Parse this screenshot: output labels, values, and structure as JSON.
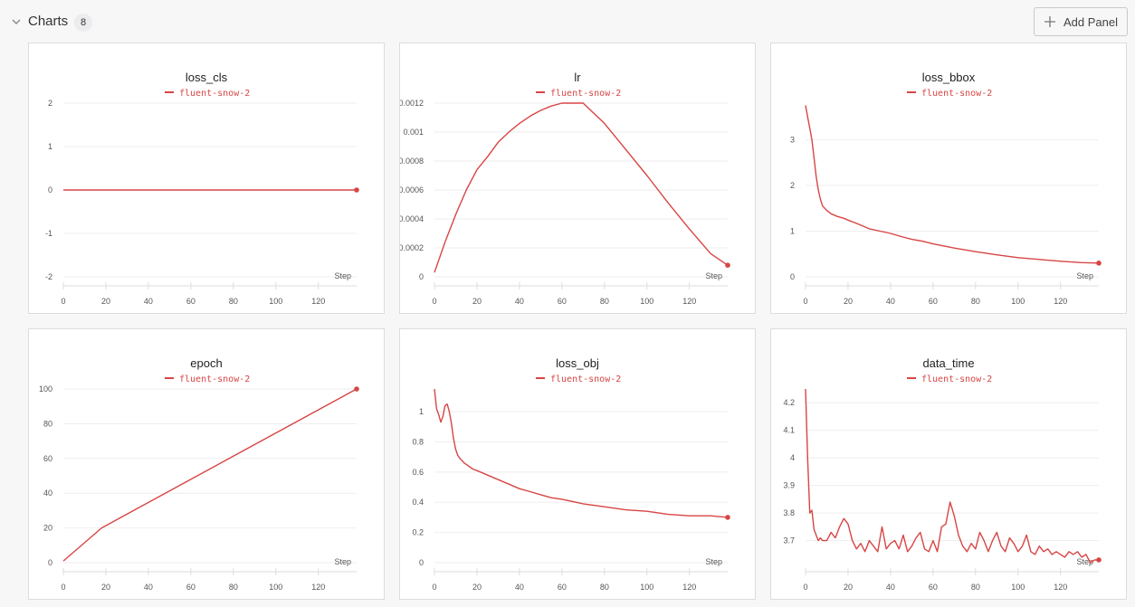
{
  "section": {
    "title": "Charts",
    "count": "8",
    "add_panel_label": "Add Panel"
  },
  "colors": {
    "series": "#d84545",
    "grid": "#eeeeee",
    "tick": "#555555"
  },
  "icons": {
    "collapse": "chevron-down-icon",
    "add": "plus-icon"
  },
  "chart_data": [
    {
      "type": "line",
      "title": "loss_cls",
      "legend": [
        "fluent-snow-2"
      ],
      "xlabel": "Step",
      "ylabel": "",
      "xlim": [
        0,
        138
      ],
      "ylim": [
        -2,
        2
      ],
      "xticks": [
        "0",
        "20",
        "40",
        "60",
        "80",
        "100",
        "120"
      ],
      "yticks": [
        "-2",
        "-1",
        "0",
        "1",
        "2"
      ],
      "series": [
        {
          "name": "fluent-snow-2",
          "x": [
            0,
            138
          ],
          "y": [
            0,
            0
          ]
        }
      ]
    },
    {
      "type": "line",
      "title": "lr",
      "legend": [
        "fluent-snow-2"
      ],
      "xlabel": "Step",
      "ylabel": "",
      "xlim": [
        0,
        138
      ],
      "ylim": [
        0,
        0.0012
      ],
      "xticks": [
        "0",
        "20",
        "40",
        "60",
        "80",
        "100",
        "120"
      ],
      "yticks": [
        "0",
        "0.0002",
        "0.0004",
        "0.0006",
        "0.0008",
        "0.001",
        "0.0012"
      ],
      "series": [
        {
          "name": "fluent-snow-2",
          "x": [
            0,
            5,
            10,
            15,
            20,
            25,
            30,
            35,
            40,
            45,
            50,
            55,
            60,
            65,
            70,
            80,
            90,
            100,
            110,
            120,
            130,
            138
          ],
          "y": [
            3e-05,
            0.00024,
            0.00043,
            0.0006,
            0.00074,
            0.00083,
            0.00093,
            0.001,
            0.00106,
            0.00111,
            0.00115,
            0.00118,
            0.0012,
            0.0012,
            0.0012,
            0.00106,
            0.00088,
            0.0007,
            0.00051,
            0.00033,
            0.00016,
            8e-05
          ]
        }
      ]
    },
    {
      "type": "line",
      "title": "loss_bbox",
      "legend": [
        "fluent-snow-2"
      ],
      "xlabel": "Step",
      "ylabel": "",
      "xlim": [
        0,
        138
      ],
      "ylim": [
        0,
        3.8
      ],
      "xticks": [
        "0",
        "20",
        "40",
        "60",
        "80",
        "100",
        "120"
      ],
      "yticks": [
        "0",
        "1",
        "2",
        "3"
      ],
      "series": [
        {
          "name": "fluent-snow-2",
          "x": [
            0,
            1,
            2,
            3,
            4,
            5,
            6,
            7,
            8,
            10,
            12,
            15,
            18,
            20,
            25,
            30,
            35,
            40,
            45,
            50,
            55,
            60,
            70,
            80,
            90,
            100,
            110,
            120,
            130,
            138
          ],
          "y": [
            3.75,
            3.5,
            3.25,
            3.0,
            2.6,
            2.2,
            1.9,
            1.7,
            1.55,
            1.45,
            1.38,
            1.32,
            1.28,
            1.24,
            1.15,
            1.05,
            1.0,
            0.95,
            0.88,
            0.82,
            0.78,
            0.72,
            0.63,
            0.55,
            0.48,
            0.42,
            0.38,
            0.34,
            0.31,
            0.3
          ]
        }
      ]
    },
    {
      "type": "line",
      "title": "epoch",
      "legend": [
        "fluent-snow-2"
      ],
      "xlabel": "Step",
      "ylabel": "",
      "xlim": [
        0,
        138
      ],
      "ylim": [
        0,
        100
      ],
      "xticks": [
        "0",
        "20",
        "40",
        "60",
        "80",
        "100",
        "120"
      ],
      "yticks": [
        "0",
        "20",
        "40",
        "60",
        "80",
        "100"
      ],
      "series": [
        {
          "name": "fluent-snow-2",
          "x": [
            0,
            18,
            138
          ],
          "y": [
            1,
            20,
            100
          ]
        }
      ]
    },
    {
      "type": "line",
      "title": "loss_obj",
      "legend": [
        "fluent-snow-2"
      ],
      "xlabel": "Step",
      "ylabel": "",
      "xlim": [
        0,
        138
      ],
      "ylim": [
        0,
        1.15
      ],
      "xticks": [
        "0",
        "20",
        "40",
        "60",
        "80",
        "100",
        "120"
      ],
      "yticks": [
        "0",
        "0.2",
        "0.4",
        "0.6",
        "0.8",
        "1"
      ],
      "series": [
        {
          "name": "fluent-snow-2",
          "x": [
            0,
            1,
            2,
            3,
            4,
            5,
            6,
            7,
            8,
            9,
            10,
            11,
            12,
            14,
            16,
            18,
            20,
            25,
            30,
            35,
            40,
            45,
            50,
            55,
            60,
            70,
            80,
            90,
            100,
            110,
            120,
            130,
            138
          ],
          "y": [
            1.15,
            1.02,
            0.98,
            0.93,
            0.97,
            1.04,
            1.05,
            1.0,
            0.92,
            0.82,
            0.75,
            0.71,
            0.69,
            0.66,
            0.64,
            0.62,
            0.61,
            0.58,
            0.55,
            0.52,
            0.49,
            0.47,
            0.45,
            0.43,
            0.42,
            0.39,
            0.37,
            0.35,
            0.34,
            0.32,
            0.31,
            0.31,
            0.3
          ]
        }
      ]
    },
    {
      "type": "line",
      "title": "data_time",
      "legend": [
        "fluent-snow-2"
      ],
      "xlabel": "Step",
      "ylabel": "",
      "xlim": [
        0,
        138
      ],
      "ylim": [
        3.62,
        4.25
      ],
      "xticks": [
        "0",
        "20",
        "40",
        "60",
        "80",
        "100",
        "120"
      ],
      "yticks": [
        "3.7",
        "3.8",
        "3.9",
        "4",
        "4.1",
        "4.2"
      ],
      "series": [
        {
          "name": "fluent-snow-2",
          "x": [
            0,
            1,
            2,
            3,
            4,
            5,
            6,
            7,
            8,
            9,
            10,
            12,
            14,
            16,
            18,
            20,
            22,
            24,
            26,
            28,
            30,
            32,
            34,
            36,
            38,
            40,
            42,
            44,
            46,
            48,
            50,
            52,
            54,
            56,
            58,
            60,
            62,
            64,
            66,
            68,
            70,
            72,
            74,
            76,
            78,
            80,
            82,
            84,
            86,
            88,
            90,
            92,
            94,
            96,
            98,
            100,
            102,
            104,
            106,
            108,
            110,
            112,
            114,
            116,
            118,
            120,
            122,
            124,
            126,
            128,
            130,
            132,
            134,
            136,
            138
          ],
          "y": [
            4.25,
            4.0,
            3.8,
            3.81,
            3.74,
            3.72,
            3.7,
            3.71,
            3.7,
            3.7,
            3.7,
            3.73,
            3.71,
            3.75,
            3.78,
            3.76,
            3.7,
            3.67,
            3.69,
            3.66,
            3.7,
            3.68,
            3.66,
            3.75,
            3.67,
            3.69,
            3.7,
            3.67,
            3.72,
            3.66,
            3.68,
            3.71,
            3.73,
            3.67,
            3.66,
            3.7,
            3.66,
            3.75,
            3.76,
            3.84,
            3.79,
            3.72,
            3.68,
            3.66,
            3.69,
            3.67,
            3.73,
            3.7,
            3.66,
            3.7,
            3.73,
            3.68,
            3.66,
            3.71,
            3.69,
            3.66,
            3.68,
            3.72,
            3.66,
            3.65,
            3.68,
            3.66,
            3.67,
            3.65,
            3.66,
            3.65,
            3.64,
            3.66,
            3.65,
            3.66,
            3.64,
            3.65,
            3.62,
            3.63,
            3.63
          ]
        }
      ]
    }
  ]
}
